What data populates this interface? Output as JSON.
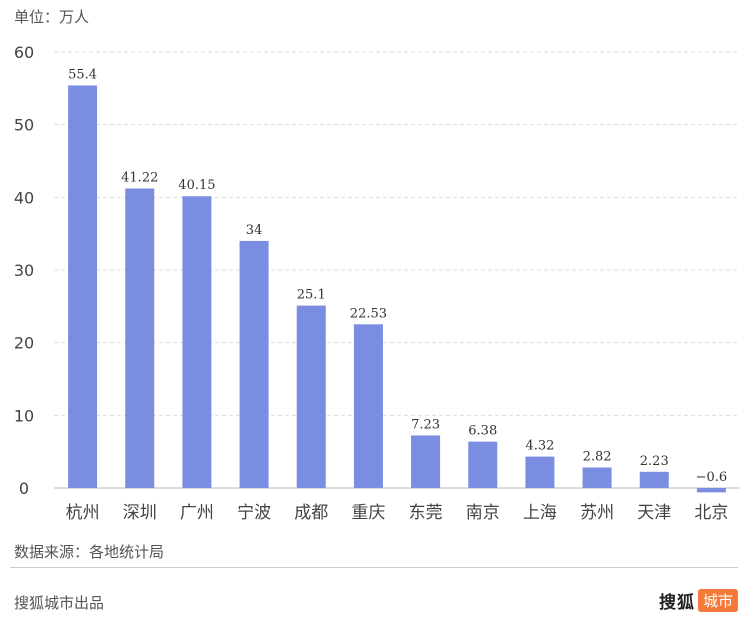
{
  "unit_label": "单位：万人",
  "footer": {
    "source": "数据来源：各地统计局",
    "credit": "搜狐城市出品",
    "logo_text": "搜狐",
    "logo_badge": "城市"
  },
  "colors": {
    "bar": "#7b8de0",
    "grid": "#dddddd",
    "logo_badge": "#f4793a"
  },
  "chart_data": {
    "type": "bar",
    "title": "",
    "xlabel": "",
    "ylabel": "",
    "categories": [
      "杭州",
      "深圳",
      "广州",
      "宁波",
      "成都",
      "重庆",
      "东莞",
      "南京",
      "上海",
      "苏州",
      "天津",
      "北京"
    ],
    "values": [
      55.4,
      41.22,
      40.15,
      34,
      25.1,
      22.53,
      7.23,
      6.38,
      4.32,
      2.82,
      2.23,
      -0.6
    ],
    "value_labels": [
      "55.4",
      "41.22",
      "40.15",
      "34",
      "25.1",
      "22.53",
      "7.23",
      "6.38",
      "4.32",
      "2.82",
      "2.23",
      "−0.6"
    ],
    "ylim": [
      0,
      60
    ],
    "yticks": [
      0,
      10,
      20,
      30,
      40,
      50,
      60
    ],
    "grid": true,
    "legend": "none"
  }
}
